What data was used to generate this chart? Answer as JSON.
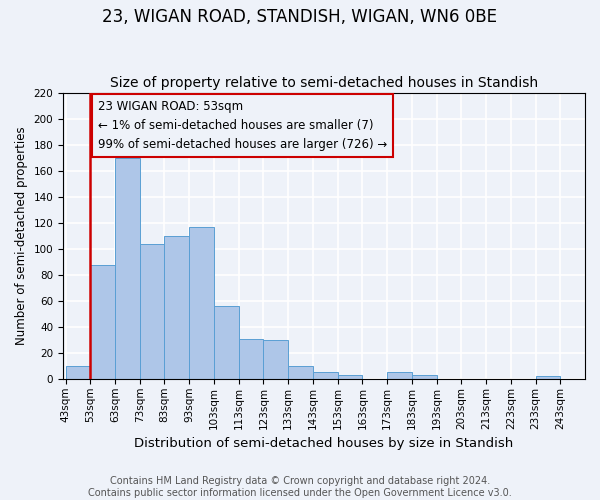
{
  "title": "23, WIGAN ROAD, STANDISH, WIGAN, WN6 0BE",
  "subtitle": "Size of property relative to semi-detached houses in Standish",
  "xlabel": "Distribution of semi-detached houses by size in Standish",
  "ylabel": "Number of semi-detached properties",
  "bin_labels": [
    "43sqm",
    "53sqm",
    "63sqm",
    "73sqm",
    "83sqm",
    "93sqm",
    "103sqm",
    "113sqm",
    "123sqm",
    "133sqm",
    "143sqm",
    "153sqm",
    "163sqm",
    "173sqm",
    "183sqm",
    "193sqm",
    "203sqm",
    "213sqm",
    "223sqm",
    "233sqm",
    "243sqm"
  ],
  "bar_values": [
    10,
    88,
    170,
    104,
    110,
    117,
    56,
    31,
    30,
    10,
    5,
    3,
    0,
    5,
    3,
    0,
    0,
    0,
    0,
    2,
    0
  ],
  "bar_color": "#aec6e8",
  "bar_edge_color": "#5a9fd4",
  "highlight_line_color": "#cc0000",
  "annotation_title": "23 WIGAN ROAD: 53sqm",
  "annotation_line1": "← 1% of semi-detached houses are smaller (7)",
  "annotation_line2": "99% of semi-detached houses are larger (726) →",
  "annotation_box_color": "#cc0000",
  "ylim": [
    0,
    220
  ],
  "yticks": [
    0,
    20,
    40,
    60,
    80,
    100,
    120,
    140,
    160,
    180,
    200,
    220
  ],
  "footnote1": "Contains HM Land Registry data © Crown copyright and database right 2024.",
  "footnote2": "Contains public sector information licensed under the Open Government Licence v3.0.",
  "background_color": "#eef2f9",
  "grid_color": "#ffffff",
  "title_fontsize": 12,
  "subtitle_fontsize": 10,
  "xlabel_fontsize": 9.5,
  "ylabel_fontsize": 8.5,
  "tick_fontsize": 7.5,
  "annotation_fontsize": 8.5,
  "footnote_fontsize": 7
}
